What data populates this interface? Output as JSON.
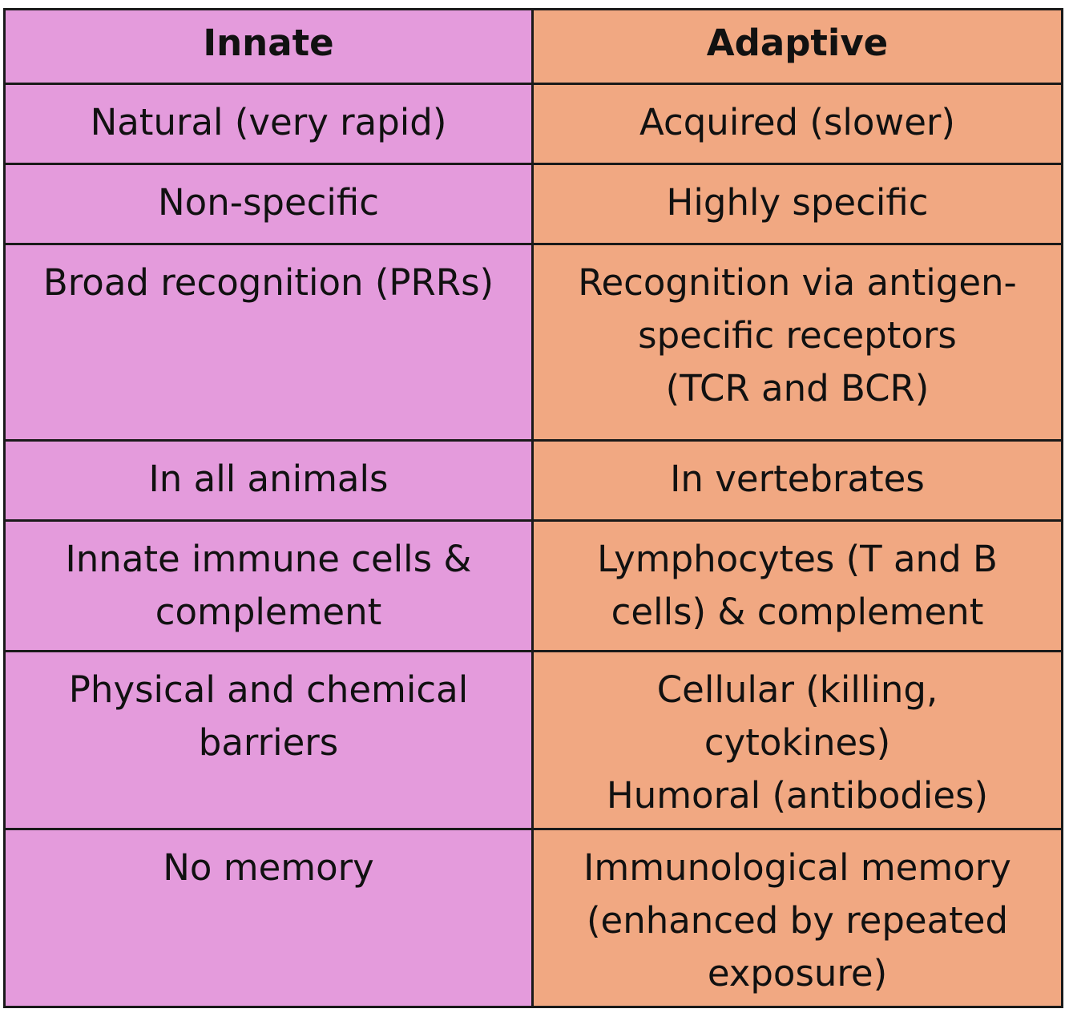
{
  "header": {
    "innate": "Innate",
    "adaptive": "Adaptive"
  },
  "colors": {
    "innate_bg": "#e49bdc",
    "adaptive_bg": "#f1a882",
    "border": "#1a1a1a"
  },
  "rows": [
    {
      "innate": [
        "Natural (very rapid)"
      ],
      "adaptive": [
        "Acquired (slower)"
      ]
    },
    {
      "innate": [
        "Non-specific"
      ],
      "adaptive": [
        "Highly specific"
      ]
    },
    {
      "innate": [
        "Broad recognition (PRRs)"
      ],
      "adaptive": [
        "Recognition via antigen-",
        "specific receptors",
        "(TCR and BCR)"
      ]
    },
    {
      "innate": [
        "In all animals"
      ],
      "adaptive": [
        "In vertebrates"
      ]
    },
    {
      "innate": [
        "Innate immune cells &",
        "complement"
      ],
      "adaptive": [
        "Lymphocytes (T and B",
        "cells) & complement"
      ]
    },
    {
      "innate": [
        "Physical and chemical",
        "barriers"
      ],
      "adaptive": [
        "Cellular (killing,",
        "cytokines)",
        "Humoral (antibodies)"
      ]
    },
    {
      "innate": [
        "No memory"
      ],
      "adaptive": [
        "Immunological memory",
        "(enhanced by repeated",
        "exposure)"
      ]
    }
  ]
}
